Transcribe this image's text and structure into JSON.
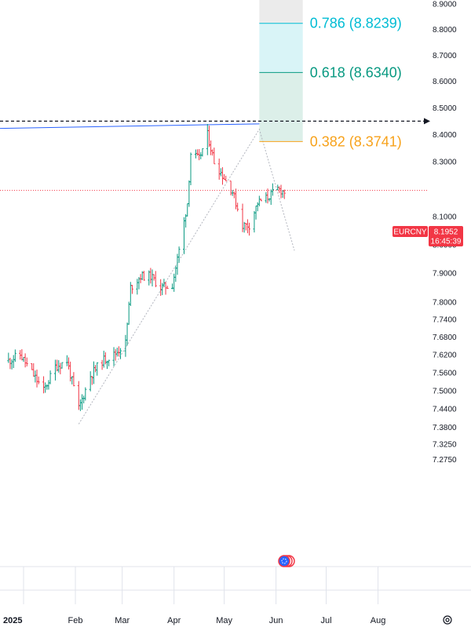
{
  "chart_data": {
    "type": "ohlc",
    "symbol": "EURCNY",
    "last_price": "8.1952",
    "countdown": "16:45:39",
    "ylim": [
      7.24,
      8.93
    ],
    "log_scale": true,
    "grid": false,
    "y_ticks": [
      "8.9000",
      "8.8000",
      "8.7000",
      "8.6000",
      "8.5000",
      "8.4000",
      "8.3000",
      "8.1000",
      "8.0000",
      "7.9000",
      "7.8000",
      "7.7400",
      "7.6800",
      "7.6200",
      "7.5600",
      "7.5000",
      "7.4400",
      "7.3800",
      "7.3250",
      "7.2750"
    ],
    "x_ticks": [
      {
        "label": "2025",
        "date": "2025-01-01"
      },
      {
        "label": "Feb",
        "date": "2025-02-01"
      },
      {
        "label": "Mar",
        "date": "2025-03-01"
      },
      {
        "label": "Apr",
        "date": "2025-04-01"
      },
      {
        "label": "May",
        "date": "2025-05-01"
      },
      {
        "label": "Jun",
        "date": "2025-06-01"
      },
      {
        "label": "Jul",
        "date": "2025-07-01"
      },
      {
        "label": "Aug",
        "date": "2025-08-01"
      }
    ],
    "price_path": [
      {
        "date": "2024-12-23",
        "value": 7.6
      },
      {
        "date": "2024-12-30",
        "value": 7.62
      },
      {
        "date": "2025-01-06",
        "value": 7.56
      },
      {
        "date": "2025-01-13",
        "value": 7.5
      },
      {
        "date": "2025-01-20",
        "value": 7.58
      },
      {
        "date": "2025-01-27",
        "value": 7.6
      },
      {
        "date": "2025-02-03",
        "value": 7.44
      },
      {
        "date": "2025-02-10",
        "value": 7.55
      },
      {
        "date": "2025-02-17",
        "value": 7.6
      },
      {
        "date": "2025-02-24",
        "value": 7.62
      },
      {
        "date": "2025-03-03",
        "value": 7.66
      },
      {
        "date": "2025-03-06",
        "value": 7.85
      },
      {
        "date": "2025-03-12",
        "value": 7.89
      },
      {
        "date": "2025-03-18",
        "value": 7.89
      },
      {
        "date": "2025-03-24",
        "value": 7.85
      },
      {
        "date": "2025-03-31",
        "value": 7.86
      },
      {
        "date": "2025-04-04",
        "value": 7.98
      },
      {
        "date": "2025-04-09",
        "value": 8.15
      },
      {
        "date": "2025-04-11",
        "value": 8.33
      },
      {
        "date": "2025-04-16",
        "value": 8.31
      },
      {
        "date": "2025-04-21",
        "value": 8.4
      },
      {
        "date": "2025-04-25",
        "value": 8.3
      },
      {
        "date": "2025-04-30",
        "value": 8.25
      },
      {
        "date": "2025-05-06",
        "value": 8.19
      },
      {
        "date": "2025-05-12",
        "value": 8.07
      },
      {
        "date": "2025-05-16",
        "value": 8.07
      },
      {
        "date": "2025-05-21",
        "value": 8.15
      },
      {
        "date": "2025-05-27",
        "value": 8.17
      },
      {
        "date": "2025-06-02",
        "value": 8.2
      },
      {
        "date": "2025-06-06",
        "value": 8.19
      }
    ],
    "horizontal_line": {
      "value": 8.45,
      "style": "dashed",
      "color": "#131722"
    },
    "trend_line": {
      "points": [
        {
          "date": "2024-12-20",
          "value": 8.423
        },
        {
          "date": "2025-05-22",
          "value": 8.44
        }
      ],
      "color": "#2962ff"
    },
    "zigzag": [
      {
        "date": "2025-02-03",
        "value": 7.39
      },
      {
        "date": "2025-05-22",
        "value": 8.42
      },
      {
        "date": "2025-06-12",
        "value": 7.98
      }
    ],
    "fib_levels": [
      {
        "label": "0.786 (8.8239)",
        "value": 8.8239,
        "color": "#00bcd4"
      },
      {
        "label": "0.618 (8.6340)",
        "value": 8.634,
        "color": "#089981"
      },
      {
        "label": "0.382 (8.3741)",
        "value": 8.3741,
        "color": "#f7a21b"
      }
    ],
    "fib_box": {
      "start_date": "2025-05-22",
      "end_date": "2025-06-17"
    },
    "colors": {
      "up": "#089981",
      "down": "#f23645",
      "accent": "#2962ff",
      "price_line": "#f23645"
    },
    "icons": {
      "settings": "settings-icon",
      "events": "earnings-flag-icon"
    }
  }
}
